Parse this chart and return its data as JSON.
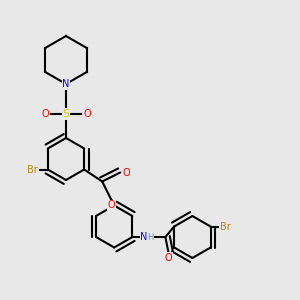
{
  "title": "",
  "bg_color": "#e8e8e8",
  "atom_colors": {
    "Br": "#b8860b",
    "N": "#0000ff",
    "O": "#ff0000",
    "S": "#cccc00",
    "H": "#5f9ea0",
    "C": "#000000"
  },
  "bond_color": "#000000",
  "figsize": [
    3.0,
    3.0
  ],
  "dpi": 100
}
